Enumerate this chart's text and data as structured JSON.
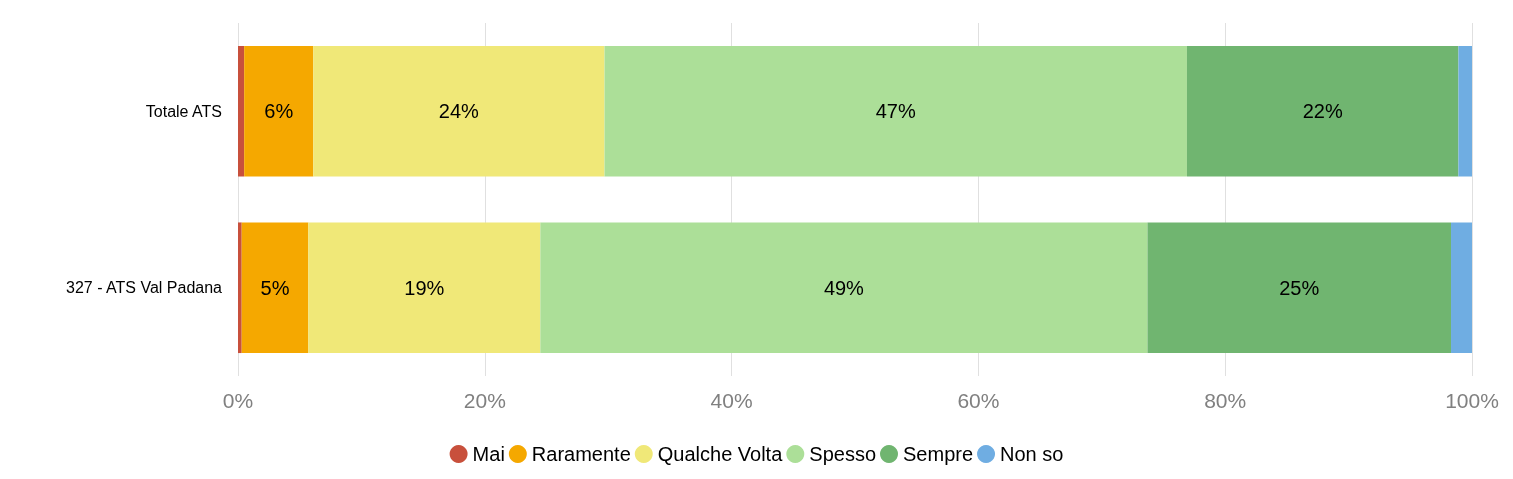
{
  "chart_data": {
    "type": "bar",
    "orientation": "horizontal",
    "stacked": true,
    "categories": [
      "Totale ATS",
      "327 - ATS Val Padana"
    ],
    "series": [
      {
        "name": "Mai",
        "color": "#c8503c",
        "values": [
          0.5,
          0.3
        ],
        "value_labels": [
          null,
          null
        ]
      },
      {
        "name": "Raramente",
        "color": "#f5a800",
        "values": [
          5.6,
          5.4
        ],
        "value_labels": [
          "6%",
          "5%"
        ]
      },
      {
        "name": "Qualche Volta",
        "color": "#f0e878",
        "values": [
          23.6,
          18.8
        ],
        "value_labels": [
          "24%",
          "19%"
        ]
      },
      {
        "name": "Spesso",
        "color": "#acdf98",
        "values": [
          47.2,
          49.2
        ],
        "value_labels": [
          "47%",
          "49%"
        ]
      },
      {
        "name": "Sempre",
        "color": "#70b570",
        "values": [
          22.0,
          24.6
        ],
        "value_labels": [
          "22%",
          "25%"
        ]
      },
      {
        "name": "Non so",
        "color": "#6fade2",
        "values": [
          1.1,
          1.7
        ],
        "value_labels": [
          null,
          null
        ]
      }
    ],
    "xlim": [
      0,
      100
    ],
    "xticks": [
      {
        "value": 0,
        "label": "0%"
      },
      {
        "value": 20,
        "label": "20%"
      },
      {
        "value": 40,
        "label": "40%"
      },
      {
        "value": 60,
        "label": "60%"
      },
      {
        "value": 80,
        "label": "80%"
      },
      {
        "value": 100,
        "label": "100%"
      }
    ],
    "grid": "x",
    "legend": "bottom",
    "marker": "circle"
  }
}
